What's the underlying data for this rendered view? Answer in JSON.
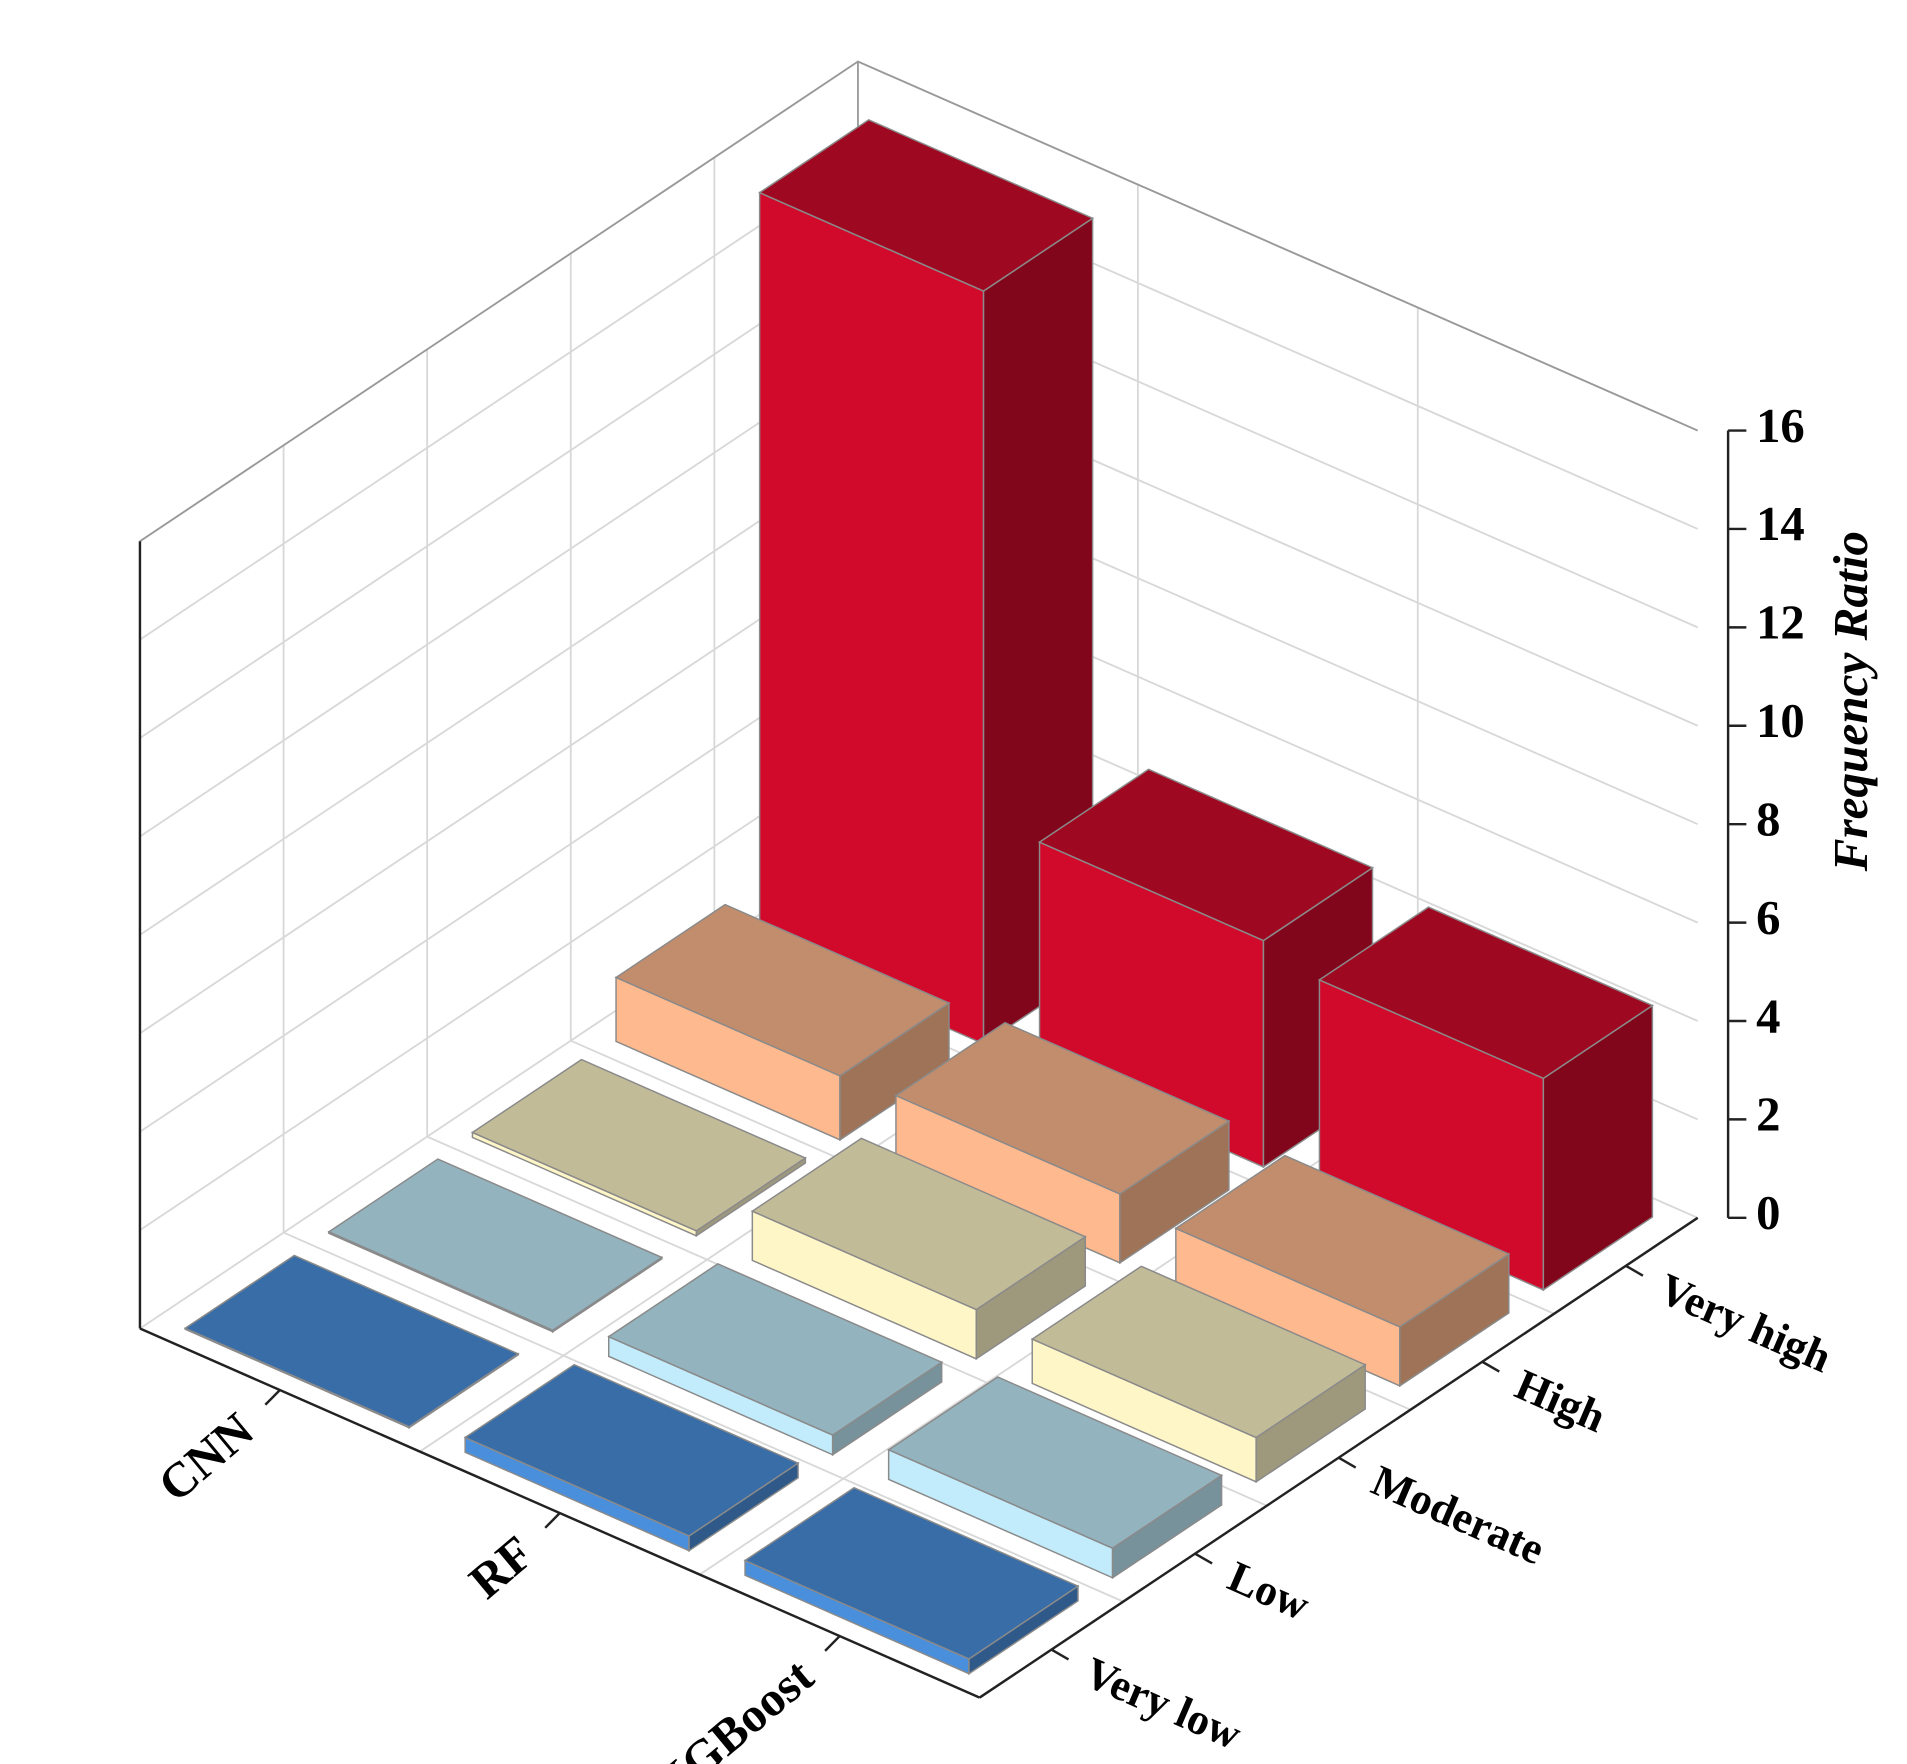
{
  "chart_data": {
    "type": "bar3d",
    "y_label": "Frequency Ratio",
    "categories": [
      "Very low",
      "Low",
      "Moderate",
      "High",
      "Very high"
    ],
    "colors": [
      "#4a8fdc",
      "#c2ecfb",
      "#fff6c8",
      "#ffb98e",
      "#d10a2c"
    ],
    "series": [
      {
        "name": "CNN",
        "values": [
          0.02,
          0.03,
          0.1,
          1.3,
          15.3
        ]
      },
      {
        "name": "RF",
        "values": [
          0.3,
          0.4,
          1.0,
          1.4,
          4.6
        ]
      },
      {
        "name": "XGBoost",
        "values": [
          0.3,
          0.6,
          0.9,
          1.2,
          4.3
        ]
      }
    ],
    "ylim": [
      0,
      16
    ],
    "yticks": [
      0,
      2,
      4,
      6,
      8,
      10,
      12,
      14,
      16
    ],
    "grid": true
  }
}
